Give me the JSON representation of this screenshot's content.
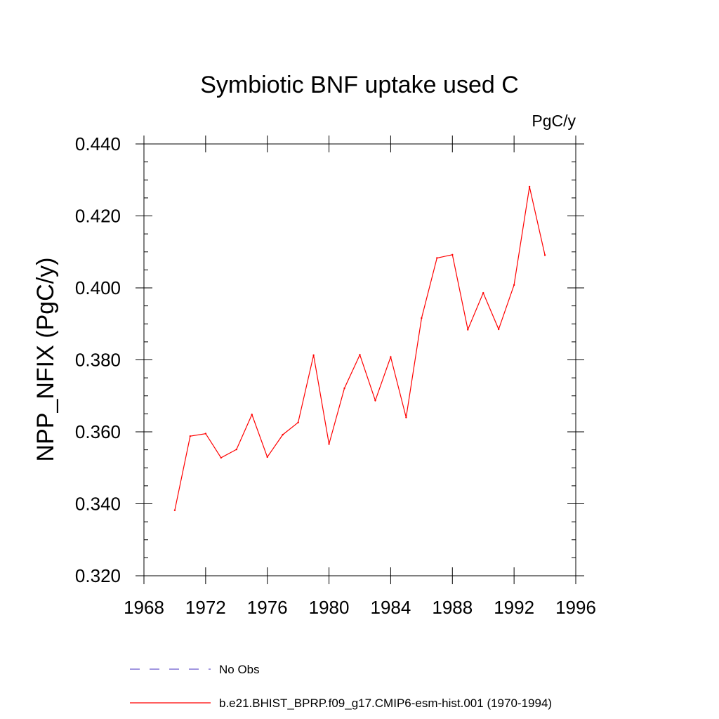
{
  "chart_data": {
    "type": "line",
    "title": "Symbiotic BNF uptake used C",
    "units": "PgC/y",
    "ylabel": "NPP_NFIX  (PgC/y)",
    "xlabel": "",
    "xlim": [
      1968,
      1996
    ],
    "ylim": [
      0.32,
      0.44
    ],
    "xticks": [
      1968,
      1972,
      1976,
      1980,
      1984,
      1988,
      1992,
      1996
    ],
    "xtick_labels": [
      "1968",
      "1972",
      "1976",
      "1980",
      "1984",
      "1988",
      "1992",
      "1996"
    ],
    "yticks": [
      0.32,
      0.34,
      0.36,
      0.38,
      0.4,
      0.42,
      0.44
    ],
    "ytick_labels": [
      "0.320",
      "0.340",
      "0.360",
      "0.380",
      "0.400",
      "0.420",
      "0.440"
    ],
    "grid": false,
    "legend_position": "bottom",
    "series": [
      {
        "name": "b.e21.BHIST_BPRP.f09_g17.CMIP6-esm-hist.001 (1970-1994)",
        "color": "#ff0000",
        "style": "solid",
        "x": [
          1970,
          1971,
          1972,
          1973,
          1974,
          1975,
          1976,
          1977,
          1978,
          1979,
          1980,
          1981,
          1982,
          1983,
          1984,
          1985,
          1986,
          1987,
          1988,
          1989,
          1990,
          1991,
          1992,
          1993,
          1994
        ],
        "y": [
          0.3382,
          0.3588,
          0.3595,
          0.3528,
          0.3551,
          0.3648,
          0.353,
          0.3592,
          0.3626,
          0.3813,
          0.3566,
          0.3721,
          0.3814,
          0.3687,
          0.3808,
          0.364,
          0.3916,
          0.4083,
          0.4092,
          0.3884,
          0.3986,
          0.3885,
          0.4008,
          0.4281,
          0.4091
        ]
      },
      {
        "name": "No Obs",
        "color": "#6a5acd",
        "style": "dashed",
        "x": [],
        "y": []
      }
    ]
  }
}
